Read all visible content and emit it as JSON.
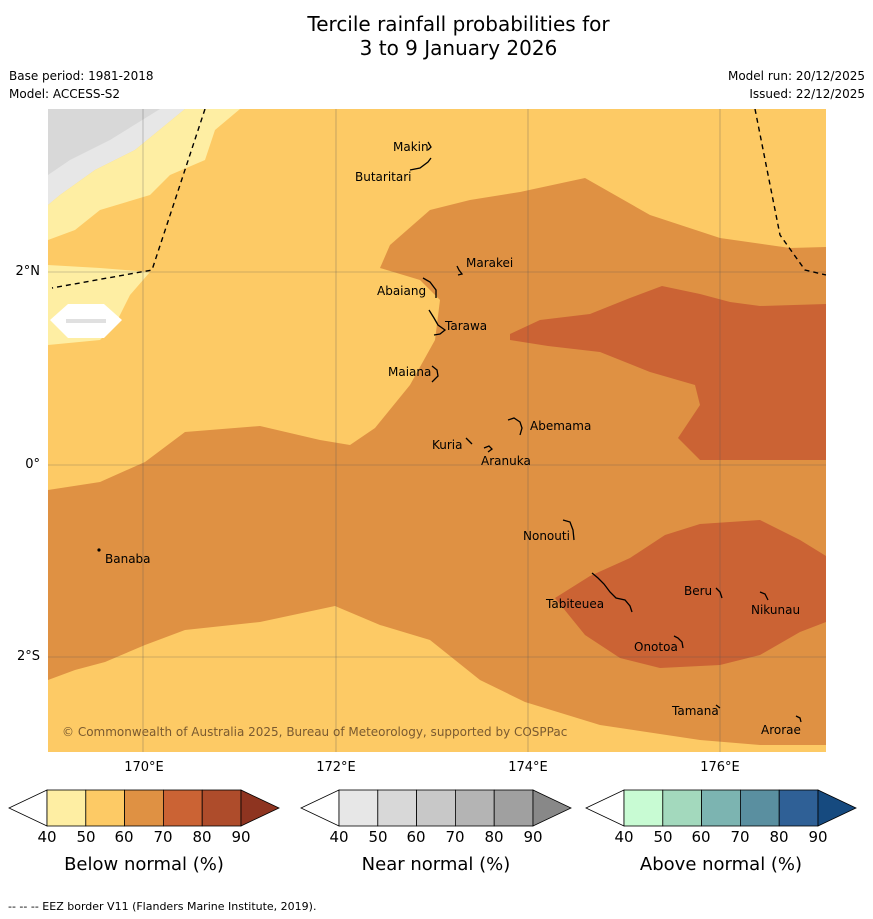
{
  "title_line1": "Tercile rainfall probabilities for",
  "title_line2": "3 to 9 January 2026",
  "base_period": "Base period: 1981-2018",
  "model": "Model: ACCESS-S2",
  "model_run": "Model run: 20/12/2025",
  "issued": "Issued: 22/12/2025",
  "lon_labels": [
    "170°E",
    "172°E",
    "174°E",
    "176°E"
  ],
  "lat_labels": [
    "2°N",
    "0°",
    "2°S"
  ],
  "places": [
    "Makin",
    "Butaritari",
    "Marakei",
    "Abaiang",
    "Tarawa",
    "Maiana",
    "Abemama",
    "Kuria",
    "Aranuka",
    "Nonouti",
    "Banaba",
    "Beru",
    "Tabiteuea",
    "Nikunau",
    "Onotoa",
    "Tamana",
    "Arorae"
  ],
  "copyright": "© Commonwealth of Australia 2025, Bureau of Meteorology, supported by COSPPac",
  "colorbars": [
    {
      "label": "Below normal (%)",
      "ticks": [
        "40",
        "50",
        "60",
        "70",
        "80",
        "90"
      ],
      "colors": [
        "#ffffff",
        "#feeea3",
        "#fdca65",
        "#df9143",
        "#cb6334",
        "#ae4c2b",
        "#8e3420"
      ]
    },
    {
      "label": "Near normal (%)",
      "ticks": [
        "40",
        "50",
        "60",
        "70",
        "80",
        "90"
      ],
      "colors": [
        "#ffffff",
        "#e7e7e7",
        "#d8d8d8",
        "#c8c8c8",
        "#b4b4b4",
        "#a0a0a0",
        "#888888"
      ]
    },
    {
      "label": "Above normal (%)",
      "ticks": [
        "40",
        "50",
        "60",
        "70",
        "80",
        "90"
      ],
      "colors": [
        "#ffffff",
        "#c8fbd3",
        "#a3d9bd",
        "#7cb4b1",
        "#5a8fa0",
        "#2f6096",
        "#164a7f"
      ]
    }
  ],
  "footnote": "--  --  -- EEZ border V11 (Flanders Marine Institute, 2019)."
}
